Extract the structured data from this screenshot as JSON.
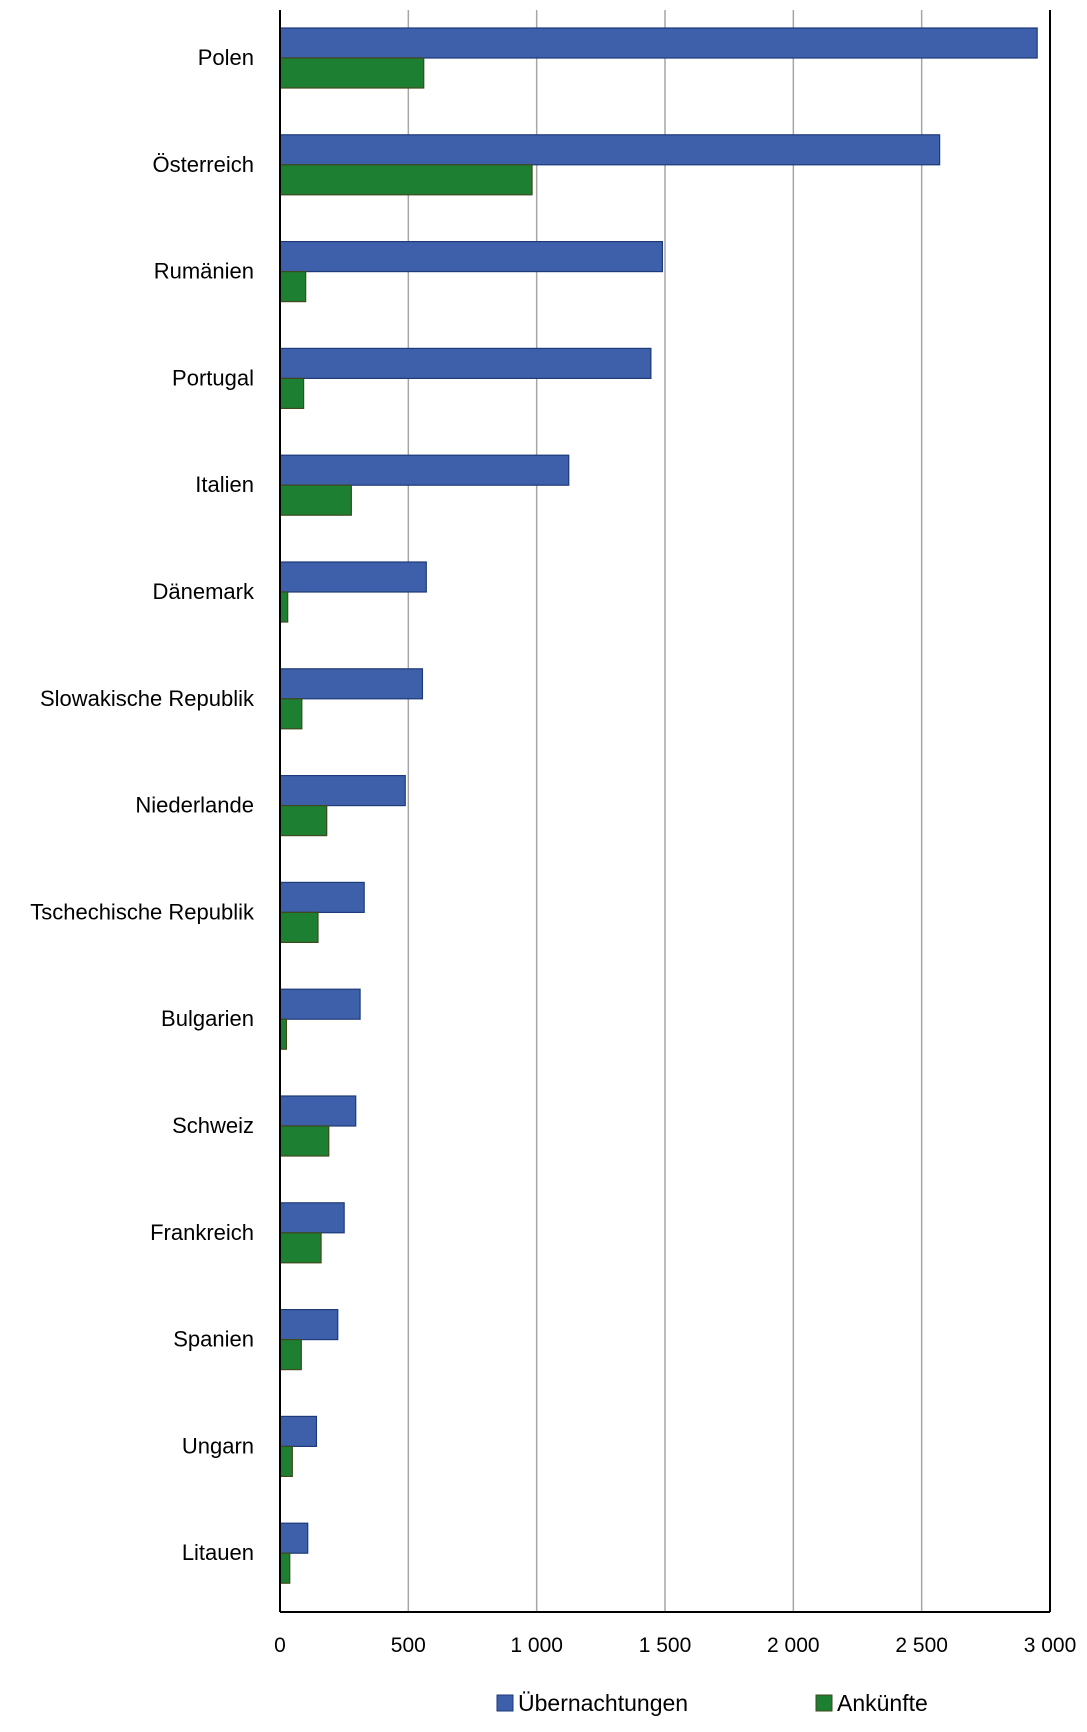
{
  "colors": {
    "series_1": "#3e5faa",
    "series_1_border": "#1f3a78",
    "series_2": "#1d7f31",
    "series_2_border": "#3f4a1c",
    "grid": "#a6a6a6",
    "axis": "#000000"
  },
  "chart_data": {
    "type": "bar",
    "orientation": "horizontal",
    "categories": [
      "Polen",
      "Österreich",
      "Rumänien",
      "Portugal",
      "Italien",
      "Dänemark",
      "Slowakische Republik",
      "Niederlande",
      "Tschechische Republik",
      "Bulgarien",
      "Schweiz",
      "Frankreich",
      "Spanien",
      "Ungarn",
      "Litauen"
    ],
    "series": [
      {
        "name": "Übernachtungen",
        "values": [
          2950,
          2570,
          1490,
          1445,
          1125,
          570,
          555,
          488,
          328,
          312,
          295,
          250,
          225,
          142,
          108
        ]
      },
      {
        "name": "Ankünfte",
        "values": [
          560,
          982,
          100,
          92,
          278,
          30,
          85,
          182,
          148,
          25,
          190,
          160,
          83,
          48,
          38
        ]
      }
    ],
    "x_ticks": [
      "0",
      "500",
      "1 000",
      "1 500",
      "2 000",
      "2 500",
      "3 000"
    ],
    "xlim": [
      0,
      3000
    ],
    "grid": true,
    "legend_position": "bottom"
  }
}
